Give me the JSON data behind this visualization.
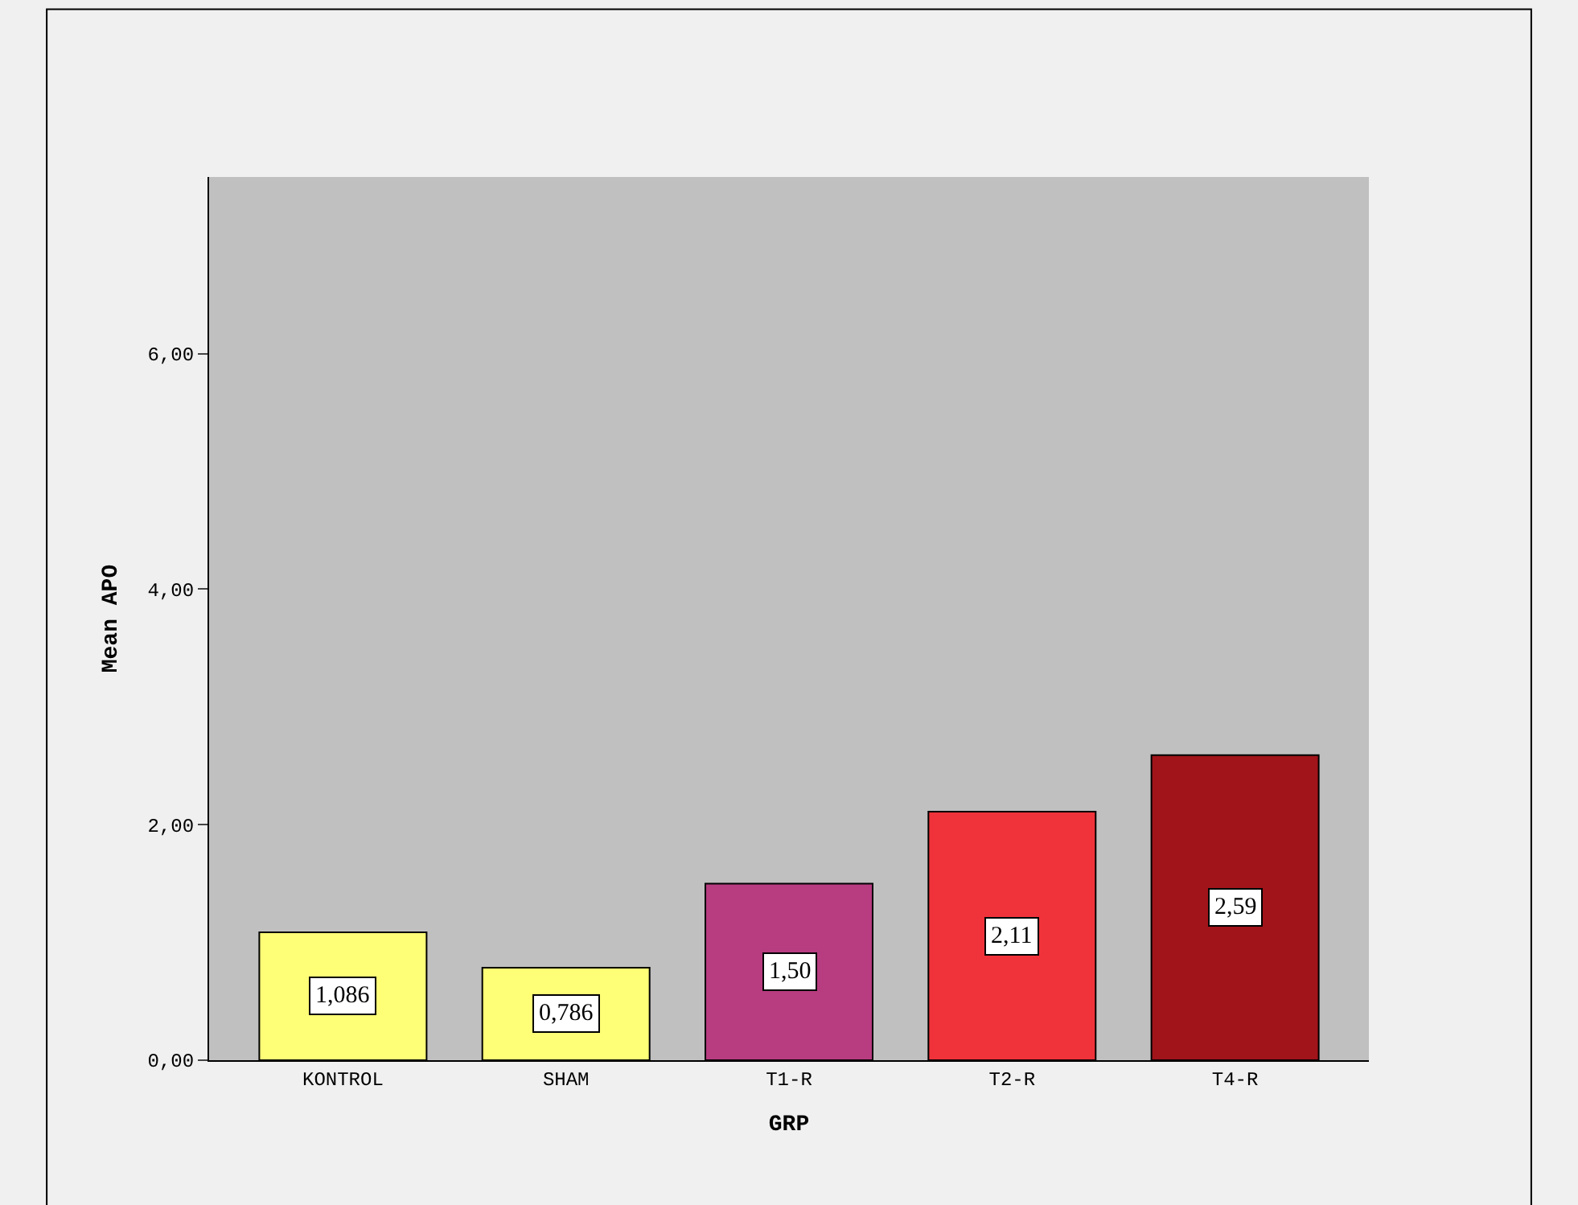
{
  "chart_data": {
    "type": "bar",
    "xlabel": "GRP",
    "ylabel": "Mean APO",
    "categories": [
      "KONTROL",
      "SHAM",
      "T1-R",
      "T2-R",
      "T4-R"
    ],
    "values": [
      1.086,
      0.786,
      1.5,
      2.11,
      2.59
    ],
    "value_labels": [
      "1,086",
      "0,786",
      "1,50",
      "2,11",
      "2,59"
    ],
    "colors": [
      "#ffff77",
      "#ffff77",
      "#b83c80",
      "#f0323a",
      "#a0141a"
    ],
    "ylim": [
      0,
      7.5
    ],
    "yticks": [
      {
        "value": 0,
        "label": "0,00"
      },
      {
        "value": 2,
        "label": "2,00"
      },
      {
        "value": 4,
        "label": "4,00"
      },
      {
        "value": 6,
        "label": "6,00"
      }
    ],
    "grid": false,
    "legend": false
  }
}
